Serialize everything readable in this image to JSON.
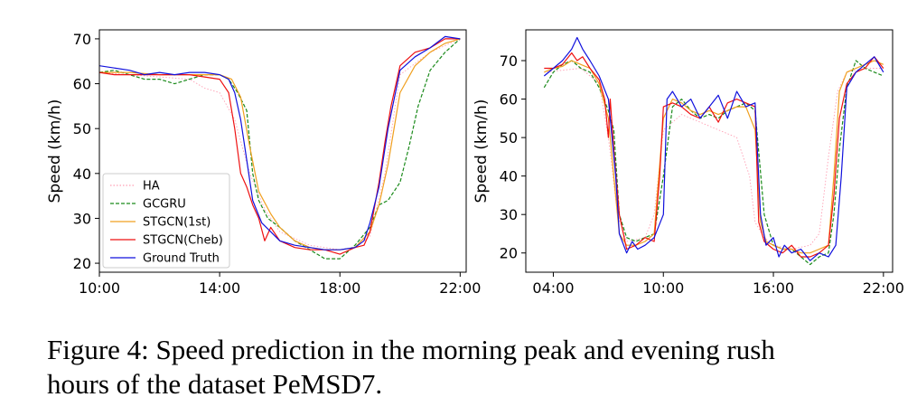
{
  "chart_data": [
    {
      "type": "line",
      "ylabel": "Speed (km/h)",
      "x_ticks": [
        "10:00",
        "14:00",
        "18:00",
        "22:00"
      ],
      "y_ticks": [
        20,
        30,
        40,
        50,
        60,
        70
      ],
      "xlim": [
        10,
        22.2
      ],
      "ylim": [
        18,
        72
      ],
      "legend_position": "lower-left",
      "series": [
        {
          "name": "HA",
          "color": "#ff9fb4",
          "style": "dotted",
          "x": [
            10,
            11,
            12,
            13,
            13.5,
            14,
            14.5,
            15,
            15.5,
            16,
            17,
            18,
            18.5,
            19,
            19.5,
            20,
            21,
            22
          ],
          "y": [
            62.5,
            62,
            61.5,
            61,
            59,
            58,
            52,
            40,
            32,
            27,
            24,
            23,
            23.5,
            26,
            40,
            62,
            67,
            70
          ]
        },
        {
          "name": "GCGRU",
          "color": "#1a8a1a",
          "style": "dashed",
          "x": [
            10,
            10.5,
            11,
            11.5,
            12,
            12.5,
            13,
            13.5,
            14,
            14.3,
            14.6,
            14.9,
            15.1,
            15.3,
            15.6,
            16,
            16.5,
            17,
            17.5,
            18,
            18.5,
            19,
            19.3,
            19.6,
            20,
            20.3,
            20.6,
            21,
            21.5,
            22
          ],
          "y": [
            62.5,
            63,
            62,
            61,
            61,
            60,
            61,
            62,
            62,
            61,
            58,
            54,
            40,
            34,
            30,
            28,
            25,
            23,
            21,
            21,
            24,
            28,
            33,
            34,
            38,
            46,
            55,
            63,
            67,
            70
          ]
        },
        {
          "name": "STGCN(1st)",
          "color": "#f0a020",
          "style": "solid",
          "x": [
            10,
            11,
            12,
            13,
            14,
            14.4,
            14.7,
            15,
            15.3,
            15.7,
            16,
            16.5,
            17,
            17.5,
            18,
            18.5,
            19,
            19.3,
            19.6,
            20,
            20.5,
            21,
            21.5,
            22
          ],
          "y": [
            62.5,
            62.5,
            62,
            62,
            62,
            61,
            57,
            46,
            36,
            31,
            28,
            25,
            23.5,
            23,
            23,
            23.5,
            27,
            33,
            42,
            58,
            64,
            67,
            69,
            70
          ]
        },
        {
          "name": "STGCN(Cheb)",
          "color": "#ee1111",
          "style": "solid",
          "x": [
            10,
            10.5,
            11,
            12,
            13,
            13.5,
            14,
            14.3,
            14.5,
            14.7,
            14.9,
            15.1,
            15.3,
            15.5,
            15.7,
            16,
            16.5,
            17,
            17.5,
            18,
            18.5,
            18.8,
            19,
            19.3,
            19.5,
            19.7,
            20,
            20.5,
            21,
            21.5,
            22
          ],
          "y": [
            62.5,
            62,
            62,
            62,
            62,
            61.5,
            61,
            58,
            50,
            40,
            37,
            33,
            30,
            25,
            28,
            25,
            23.5,
            23,
            23,
            22,
            23.5,
            24,
            27,
            38,
            47,
            55,
            64,
            67,
            68,
            70,
            70
          ]
        },
        {
          "name": "Ground Truth",
          "color": "#1111dd",
          "style": "solid",
          "x": [
            10,
            10.5,
            11,
            11.5,
            12,
            12.5,
            13,
            13.5,
            14,
            14.3,
            14.5,
            14.7,
            14.9,
            15.1,
            15.4,
            15.7,
            16,
            16.5,
            17,
            17.5,
            18,
            18.5,
            18.8,
            19,
            19.3,
            19.6,
            20,
            20.5,
            21,
            21.5,
            22
          ],
          "y": [
            64,
            63.5,
            63,
            62,
            62.5,
            62,
            62.5,
            62.5,
            62,
            61,
            58,
            52,
            43,
            34,
            29,
            27,
            25,
            24,
            23.5,
            23,
            23,
            23.5,
            25,
            29,
            37,
            50,
            63,
            66,
            68,
            70.5,
            70
          ]
        }
      ]
    },
    {
      "type": "line",
      "ylabel": "Speed (km/h)",
      "x_ticks": [
        "04:00",
        "10:00",
        "16:00",
        "22:00"
      ],
      "y_ticks": [
        20,
        30,
        40,
        50,
        60,
        70
      ],
      "xlim": [
        2.5,
        22.5
      ],
      "ylim": [
        15,
        78
      ],
      "series": [
        {
          "name": "HA",
          "color": "#ff9fb4",
          "style": "dotted",
          "x": [
            3.5,
            4.5,
            5.5,
            6.5,
            7,
            7.5,
            8,
            9,
            9.5,
            10,
            11,
            12,
            13,
            14,
            14.7,
            15,
            15.5,
            16,
            17,
            18,
            18.5,
            19,
            19.5,
            20,
            21,
            22
          ],
          "y": [
            67,
            67.5,
            68,
            64,
            50,
            30,
            23,
            24,
            30,
            52,
            56,
            54,
            52,
            50,
            40,
            28,
            24,
            22,
            21,
            22,
            25,
            45,
            62,
            67,
            68,
            68
          ]
        },
        {
          "name": "GCGRU",
          "color": "#1a8a1a",
          "style": "dashed",
          "x": [
            3.5,
            4,
            4.5,
            5,
            5.5,
            6,
            6.5,
            7,
            7.3,
            7.6,
            8,
            8.5,
            9,
            9.5,
            10,
            10.5,
            11,
            11.5,
            12,
            12.5,
            13,
            13.5,
            14,
            14.5,
            15,
            15.5,
            16,
            16.5,
            17,
            17.5,
            18,
            18.5,
            19,
            19.3,
            19.6,
            20,
            20.5,
            21,
            21.5,
            22
          ],
          "y": [
            63,
            67,
            69,
            70,
            68,
            67,
            63,
            57,
            52,
            30,
            24,
            23,
            24,
            25,
            40,
            58,
            60,
            57,
            55,
            56,
            55,
            57,
            58,
            59,
            57,
            30,
            22,
            21,
            21,
            19,
            17,
            19,
            20,
            30,
            47,
            63,
            70,
            68,
            67,
            66
          ]
        },
        {
          "name": "STGCN(1st)",
          "color": "#f0a020",
          "style": "solid",
          "x": [
            3.5,
            4,
            4.5,
            5,
            5.5,
            6,
            6.5,
            7,
            7.3,
            7.6,
            8,
            8.5,
            9,
            9.5,
            10,
            10.5,
            11,
            11.5,
            12,
            12.5,
            13,
            13.5,
            14,
            14.5,
            15,
            15.3,
            15.6,
            16,
            16.5,
            17,
            17.5,
            18,
            18.5,
            19,
            19.3,
            19.6,
            20,
            20.5,
            21,
            21.5,
            22
          ],
          "y": [
            67,
            68,
            68.5,
            70,
            69,
            68,
            64,
            55,
            40,
            25,
            22,
            22,
            23,
            25,
            55,
            60,
            59,
            57,
            56,
            57,
            56,
            57,
            58,
            58,
            52,
            28,
            23,
            22,
            21,
            21,
            20,
            20,
            21,
            22,
            40,
            62,
            67,
            68,
            69,
            70,
            69
          ]
        },
        {
          "name": "STGCN(Cheb)",
          "color": "#ee1111",
          "style": "solid",
          "x": [
            3.5,
            4,
            4.5,
            5,
            5.3,
            5.6,
            6,
            6.5,
            6.8,
            7,
            7.1,
            7.3,
            7.6,
            8,
            8.5,
            9,
            9.5,
            9.8,
            10,
            10.5,
            11,
            11.5,
            12,
            12.5,
            13,
            13.5,
            14,
            14.5,
            15,
            15.2,
            15.5,
            16,
            16.5,
            17,
            17.5,
            18,
            18.5,
            19,
            19.3,
            19.6,
            20,
            20.5,
            21,
            21.5,
            22
          ],
          "y": [
            68,
            68,
            69,
            72,
            70,
            71,
            68,
            65,
            60,
            50,
            60,
            47,
            30,
            21,
            22,
            24,
            23,
            40,
            58,
            59,
            58,
            56,
            55,
            58,
            54,
            59,
            60,
            59,
            58,
            28,
            23,
            21,
            20,
            22,
            19,
            19,
            20,
            22,
            35,
            55,
            64,
            67,
            68,
            71,
            68
          ]
        },
        {
          "name": "Ground Truth",
          "color": "#1111dd",
          "style": "solid",
          "x": [
            3.5,
            4,
            4.5,
            5,
            5.3,
            5.6,
            6,
            6.5,
            7,
            7.4,
            7.6,
            8,
            8.3,
            8.6,
            9,
            9.5,
            10,
            10.2,
            10.5,
            11,
            11.5,
            12,
            12.5,
            13,
            13.5,
            14,
            14.5,
            15,
            15.3,
            15.6,
            16,
            16.3,
            16.6,
            17,
            17.5,
            18,
            18.5,
            19,
            19.4,
            19.7,
            20,
            20.5,
            21,
            21.5,
            22
          ],
          "y": [
            66,
            68,
            70,
            73,
            76,
            73,
            70,
            66,
            60,
            40,
            25,
            20,
            23,
            21,
            22,
            24,
            30,
            60,
            62,
            58,
            60,
            55,
            58,
            61,
            55,
            62,
            58,
            59,
            30,
            22,
            24,
            19,
            22,
            20,
            21,
            18,
            20,
            19,
            22,
            40,
            63,
            67,
            69,
            71,
            67
          ]
        }
      ]
    }
  ],
  "caption": {
    "line1": "Figure 4:  Speed prediction in the morning peak and evening rush",
    "line2": "hours of the dataset PeMSD7."
  }
}
